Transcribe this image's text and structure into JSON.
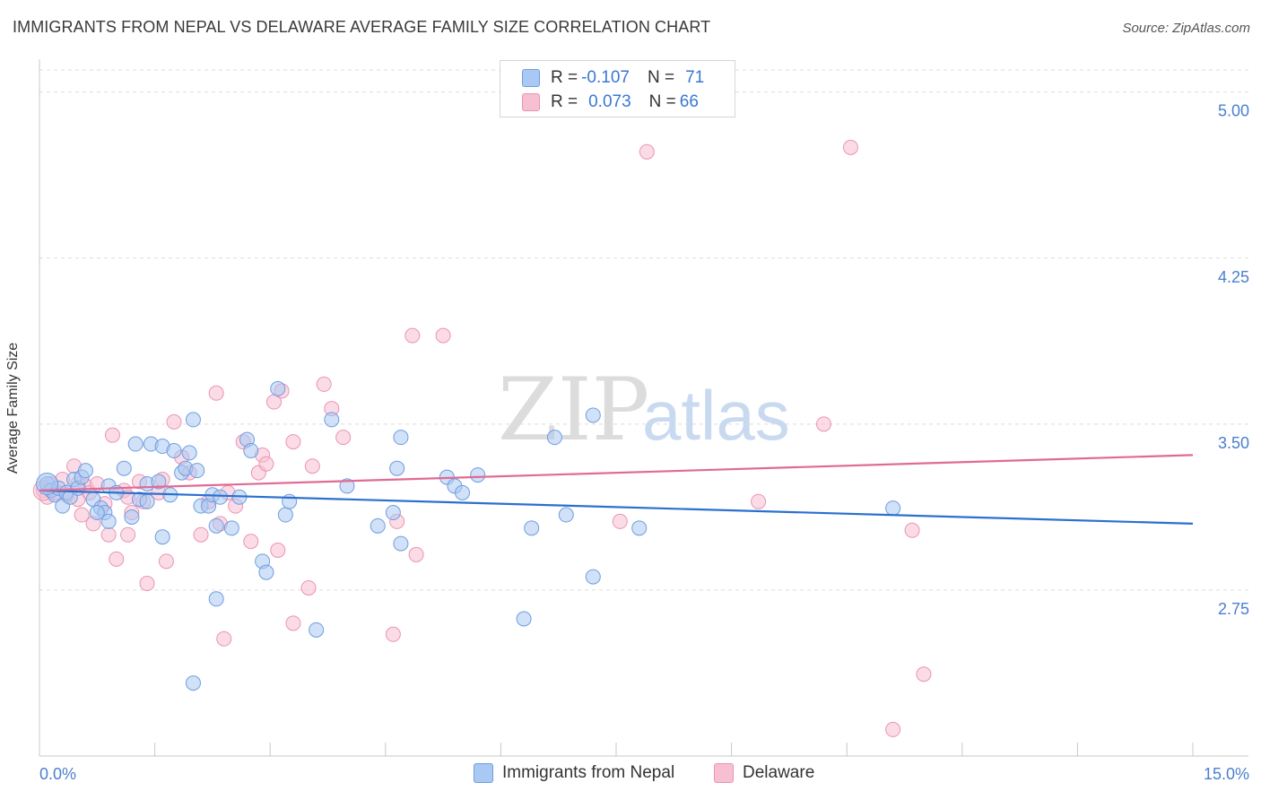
{
  "title": "IMMIGRANTS FROM NEPAL VS DELAWARE AVERAGE FAMILY SIZE CORRELATION CHART",
  "source": "Source: ZipAtlas.com",
  "watermark": {
    "zip": "ZIP",
    "atlas": "atlas"
  },
  "colors": {
    "blue_fill": "#a9c8f3",
    "blue_stroke": "#6f9de0",
    "blue_line": "#2b70cf",
    "pink_fill": "#f7bfd2",
    "pink_stroke": "#eb93b2",
    "pink_line": "#e06a95",
    "tick_text": "#4a7fd0"
  },
  "legend": {
    "rows": [
      {
        "r_label": "R = ",
        "r_value": "-0.107",
        "n_label": "N = ",
        "n_value": "71"
      },
      {
        "r_label": "R = ",
        "r_value": "0.073",
        "n_label": "N = ",
        "n_value": "66"
      }
    ]
  },
  "bottom_legend": [
    "Immigrants from Nepal",
    "Delaware"
  ],
  "chart_data": {
    "type": "scatter",
    "title": "IMMIGRANTS FROM NEPAL VS DELAWARE AVERAGE FAMILY SIZE CORRELATION CHART",
    "xlabel": "",
    "ylabel": "Average Family Size",
    "xlim": [
      0,
      15
    ],
    "ylim": [
      2.0,
      5.1
    ],
    "x_tick_labels": [
      "0.0%",
      "15.0%"
    ],
    "y_ticks": [
      2.75,
      3.5,
      4.25,
      5.0
    ],
    "y_tick_labels": [
      "2.75",
      "3.50",
      "4.25",
      "5.00"
    ],
    "grid": "horizontal dashed",
    "series": [
      {
        "name": "Immigrants from Nepal",
        "color": "#a9c8f3",
        "trend": {
          "x0": 0,
          "y0": 3.2,
          "x1": 15,
          "y1": 3.05
        },
        "points": [
          [
            0.1,
            3.23
          ],
          [
            0.15,
            3.2
          ],
          [
            0.2,
            3.18
          ],
          [
            0.25,
            3.21
          ],
          [
            0.3,
            3.13
          ],
          [
            0.35,
            3.19
          ],
          [
            0.4,
            3.17
          ],
          [
            0.45,
            3.25
          ],
          [
            0.5,
            3.21
          ],
          [
            0.55,
            3.26
          ],
          [
            0.6,
            3.29
          ],
          [
            0.7,
            3.16
          ],
          [
            0.8,
            3.12
          ],
          [
            0.85,
            3.1
          ],
          [
            0.9,
            3.22
          ],
          [
            1.0,
            3.19
          ],
          [
            1.1,
            3.3
          ],
          [
            1.2,
            3.08
          ],
          [
            1.25,
            3.41
          ],
          [
            1.3,
            3.16
          ],
          [
            1.4,
            3.23
          ],
          [
            1.45,
            3.41
          ],
          [
            1.55,
            3.24
          ],
          [
            1.6,
            3.4
          ],
          [
            1.7,
            3.18
          ],
          [
            1.75,
            3.38
          ],
          [
            1.85,
            3.28
          ],
          [
            1.9,
            3.3
          ],
          [
            1.95,
            3.37
          ],
          [
            2.0,
            3.52
          ],
          [
            2.05,
            3.29
          ],
          [
            2.1,
            3.13
          ],
          [
            2.2,
            3.13
          ],
          [
            2.25,
            3.18
          ],
          [
            2.3,
            3.04
          ],
          [
            2.35,
            3.17
          ],
          [
            2.5,
            3.03
          ],
          [
            2.6,
            3.17
          ],
          [
            2.7,
            3.43
          ],
          [
            2.75,
            3.38
          ],
          [
            2.9,
            2.88
          ],
          [
            2.95,
            2.83
          ],
          [
            3.1,
            3.66
          ],
          [
            3.2,
            3.09
          ],
          [
            3.25,
            3.15
          ],
          [
            3.8,
            3.52
          ],
          [
            4.0,
            3.22
          ],
          [
            4.4,
            3.04
          ],
          [
            4.6,
            3.1
          ],
          [
            4.65,
            3.3
          ],
          [
            4.7,
            3.44
          ],
          [
            4.7,
            2.96
          ],
          [
            5.3,
            3.26
          ],
          [
            5.4,
            3.22
          ],
          [
            5.5,
            3.19
          ],
          [
            5.7,
            3.27
          ],
          [
            6.3,
            2.62
          ],
          [
            6.4,
            3.03
          ],
          [
            6.7,
            3.44
          ],
          [
            6.85,
            3.09
          ],
          [
            7.2,
            2.81
          ],
          [
            7.2,
            3.54
          ],
          [
            7.8,
            3.03
          ],
          [
            11.1,
            3.12
          ],
          [
            1.6,
            2.99
          ],
          [
            0.9,
            3.06
          ],
          [
            2.0,
            2.33
          ],
          [
            2.3,
            2.71
          ],
          [
            1.4,
            3.15
          ],
          [
            0.75,
            3.1
          ],
          [
            3.6,
            2.57
          ]
        ]
      },
      {
        "name": "Delaware",
        "color": "#f7bfd2",
        "trend": {
          "x0": 0,
          "y0": 3.2,
          "x1": 15,
          "y1": 3.36
        },
        "points": [
          [
            0.05,
            3.2
          ],
          [
            0.1,
            3.17
          ],
          [
            0.15,
            3.23
          ],
          [
            0.2,
            3.19
          ],
          [
            0.3,
            3.25
          ],
          [
            0.35,
            3.18
          ],
          [
            0.45,
            3.31
          ],
          [
            0.5,
            3.16
          ],
          [
            0.55,
            3.09
          ],
          [
            0.6,
            3.22
          ],
          [
            0.65,
            3.19
          ],
          [
            0.75,
            3.23
          ],
          [
            0.85,
            3.14
          ],
          [
            0.9,
            3.0
          ],
          [
            0.95,
            3.45
          ],
          [
            1.0,
            2.89
          ],
          [
            1.1,
            3.2
          ],
          [
            1.15,
            3.17
          ],
          [
            1.2,
            3.1
          ],
          [
            1.3,
            3.24
          ],
          [
            1.4,
            2.78
          ],
          [
            1.55,
            3.19
          ],
          [
            1.6,
            3.25
          ],
          [
            1.65,
            2.88
          ],
          [
            1.75,
            3.51
          ],
          [
            1.85,
            3.35
          ],
          [
            1.95,
            3.28
          ],
          [
            2.1,
            3.0
          ],
          [
            2.3,
            3.64
          ],
          [
            2.35,
            3.05
          ],
          [
            2.4,
            2.53
          ],
          [
            2.45,
            3.19
          ],
          [
            2.55,
            3.13
          ],
          [
            2.65,
            3.42
          ],
          [
            2.75,
            2.97
          ],
          [
            2.85,
            3.28
          ],
          [
            2.9,
            3.36
          ],
          [
            2.95,
            3.32
          ],
          [
            3.05,
            3.6
          ],
          [
            3.1,
            2.93
          ],
          [
            3.15,
            3.65
          ],
          [
            3.3,
            3.42
          ],
          [
            3.3,
            2.6
          ],
          [
            3.5,
            2.76
          ],
          [
            3.55,
            3.31
          ],
          [
            3.7,
            3.68
          ],
          [
            3.8,
            3.57
          ],
          [
            3.95,
            3.44
          ],
          [
            4.6,
            2.55
          ],
          [
            4.65,
            3.06
          ],
          [
            4.85,
            3.9
          ],
          [
            4.9,
            2.91
          ],
          [
            5.25,
            3.9
          ],
          [
            7.55,
            3.06
          ],
          [
            7.9,
            4.73
          ],
          [
            9.35,
            3.15
          ],
          [
            10.2,
            3.5
          ],
          [
            10.55,
            4.75
          ],
          [
            11.35,
            3.02
          ],
          [
            11.5,
            2.37
          ],
          [
            11.1,
            2.12
          ],
          [
            1.15,
            3.0
          ],
          [
            0.5,
            3.23
          ],
          [
            2.2,
            3.15
          ],
          [
            1.35,
            3.15
          ],
          [
            0.7,
            3.05
          ]
        ]
      }
    ]
  }
}
